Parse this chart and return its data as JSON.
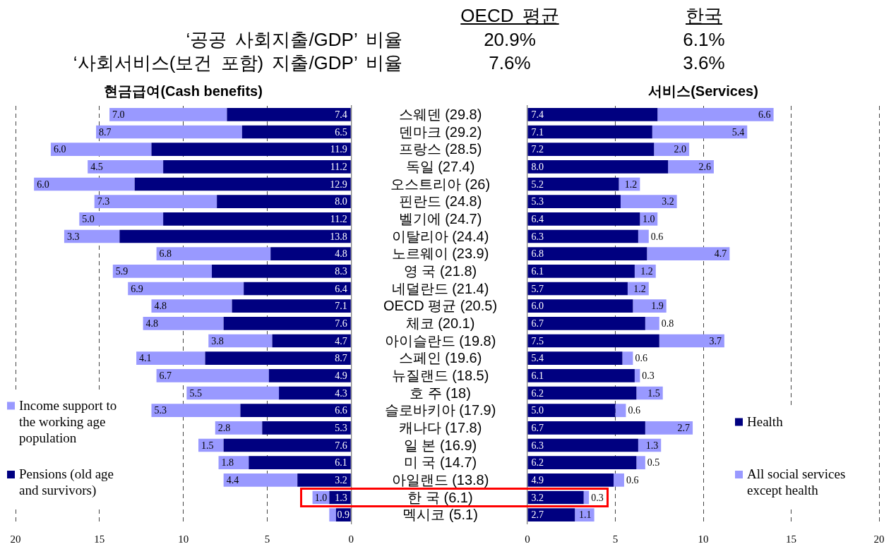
{
  "chart_data": [
    {
      "type": "other",
      "annotations": [
        "OECD 평균",
        "한국",
        "‘공공 사회지출/GDP’ 비율",
        "20.9%",
        "6.1%",
        "‘사회서비스(보건 포함) 지출/GDP’ 비율",
        "7.6%",
        "3.6%"
      ]
    },
    {
      "type": "bar",
      "title": "현금급여(Cash benefits)",
      "orientation": "horizontal",
      "stacked": true,
      "categories": [
        null,
        null,
        null,
        null,
        null,
        null,
        null,
        null,
        null,
        null,
        null,
        null,
        null,
        null,
        null,
        null,
        null,
        null,
        null,
        null,
        null,
        null,
        null,
        null
      ],
      "series": [
        {
          "name": "Pensions (old age and survivors)",
          "color": "#000080",
          "values": [
            7.4,
            6.5,
            11.9,
            11.2,
            12.9,
            8.0,
            11.2,
            13.8,
            4.8,
            8.3,
            6.4,
            7.1,
            7.6,
            4.7,
            8.7,
            4.9,
            4.3,
            6.6,
            5.3,
            7.6,
            6.1,
            3.2,
            1.3,
            0.9
          ],
          "value_labels": [
            "7.4",
            "6.5",
            "11.9",
            "11.2",
            "12.9",
            "8.0",
            "11.2",
            "13.8",
            "4.8",
            "8.3",
            "6.4",
            "7.1",
            "7.6",
            "4.7",
            "8.7",
            "4.9",
            "4.3",
            "6.6",
            "5.3",
            "7.6",
            "6.1",
            "3.2",
            "1.3",
            "0.9"
          ]
        },
        {
          "name": "Income support to the working age population",
          "color": "#9999ff",
          "values": [
            7.0,
            8.7,
            6.0,
            4.5,
            6.0,
            7.3,
            5.0,
            3.3,
            6.8,
            5.9,
            6.9,
            4.8,
            4.8,
            3.8,
            4.1,
            6.7,
            5.5,
            5.3,
            2.8,
            1.5,
            1.8,
            4.4,
            1.0,
            0.4
          ],
          "value_labels": [
            "7.0",
            "8.7",
            "6.0",
            "4.5",
            "6.0",
            "7.3",
            "5.0",
            "3.3",
            "6.8",
            "5.9",
            "6.9",
            "4.8",
            "4.8",
            "3.8",
            "4.1",
            "6.7",
            "5.5",
            "5.3",
            "2.8",
            "1.5",
            "1.8",
            "4.4",
            "1.0",
            null
          ]
        }
      ],
      "xlim": [
        20,
        0
      ],
      "xticks": [
        20,
        15,
        10,
        5,
        0
      ],
      "grid": "x",
      "legend": "bottom left",
      "tick_labels": "x"
    },
    {
      "type": "bar",
      "title": "서비스(Services)",
      "orientation": "horizontal",
      "stacked": true,
      "categories": [
        "스웨덴 (29.8)",
        "덴마크 (29.2)",
        "프랑스 (28.5)",
        "독일 (27.4)",
        "오스트리아 (26)",
        "핀란드 (24.8)",
        "벨기에 (24.7)",
        "이탈리아 (24.4)",
        "노르웨이 (23.9)",
        "영 국 (21.8)",
        "네덜란드 (21.4)",
        "OECD 평균 (20.5)",
        "체코 (20.1)",
        "아이슬란드 (19.8)",
        "스페인 (19.6)",
        "뉴질랜드 (18.5)",
        "호 주 (18)",
        "슬로바키아 (17.9)",
        "캐나다 (17.8)",
        "일 본 (16.9)",
        "미 국 (14.7)",
        "아일랜드 (13.8)",
        "한 국 (6.1)",
        "멕시코 (5.1)"
      ],
      "series": [
        {
          "name": "Health",
          "color": "#000080",
          "values": [
            7.4,
            7.1,
            7.2,
            8.0,
            5.2,
            5.3,
            6.4,
            6.3,
            6.8,
            6.1,
            5.7,
            6.0,
            6.7,
            7.5,
            5.4,
            6.1,
            6.2,
            5.0,
            6.7,
            6.3,
            6.2,
            4.9,
            3.2,
            2.7
          ],
          "value_labels": [
            "7.4",
            "7.1",
            "7.2",
            "8.0",
            "5.2",
            "5.3",
            "6.4",
            "6.3",
            "6.8",
            "6.1",
            "5.7",
            "6.0",
            "6.7",
            "7.5",
            "5.4",
            "6.1",
            "6.2",
            "5.0",
            "6.7",
            "6.3",
            "6.2",
            "4.9",
            "3.2",
            "2.7"
          ]
        },
        {
          "name": "All social services except health",
          "color": "#9999ff",
          "values": [
            6.6,
            5.4,
            2.0,
            2.6,
            1.2,
            3.2,
            1.0,
            0.6,
            4.7,
            1.2,
            1.2,
            1.9,
            0.8,
            3.7,
            0.6,
            0.3,
            1.5,
            0.6,
            2.7,
            1.3,
            0.5,
            0.6,
            0.3,
            1.1
          ],
          "value_labels": [
            "6.6",
            "5.4",
            "2.0",
            "2.6",
            "1.2",
            "3.2",
            "1.0",
            "0.6",
            "4.7",
            "1.2",
            "1.2",
            "1.9",
            "0.8",
            "3.7",
            "0.6",
            "0.3",
            "1.5",
            "0.6",
            "2.7",
            "1.3",
            "0.5",
            "0.6",
            "0.3",
            "1.1"
          ]
        }
      ],
      "xlim": [
        0,
        20
      ],
      "xticks": [
        0,
        5,
        10,
        15,
        20
      ],
      "grid": "x",
      "legend": "bottom right"
    }
  ]
}
